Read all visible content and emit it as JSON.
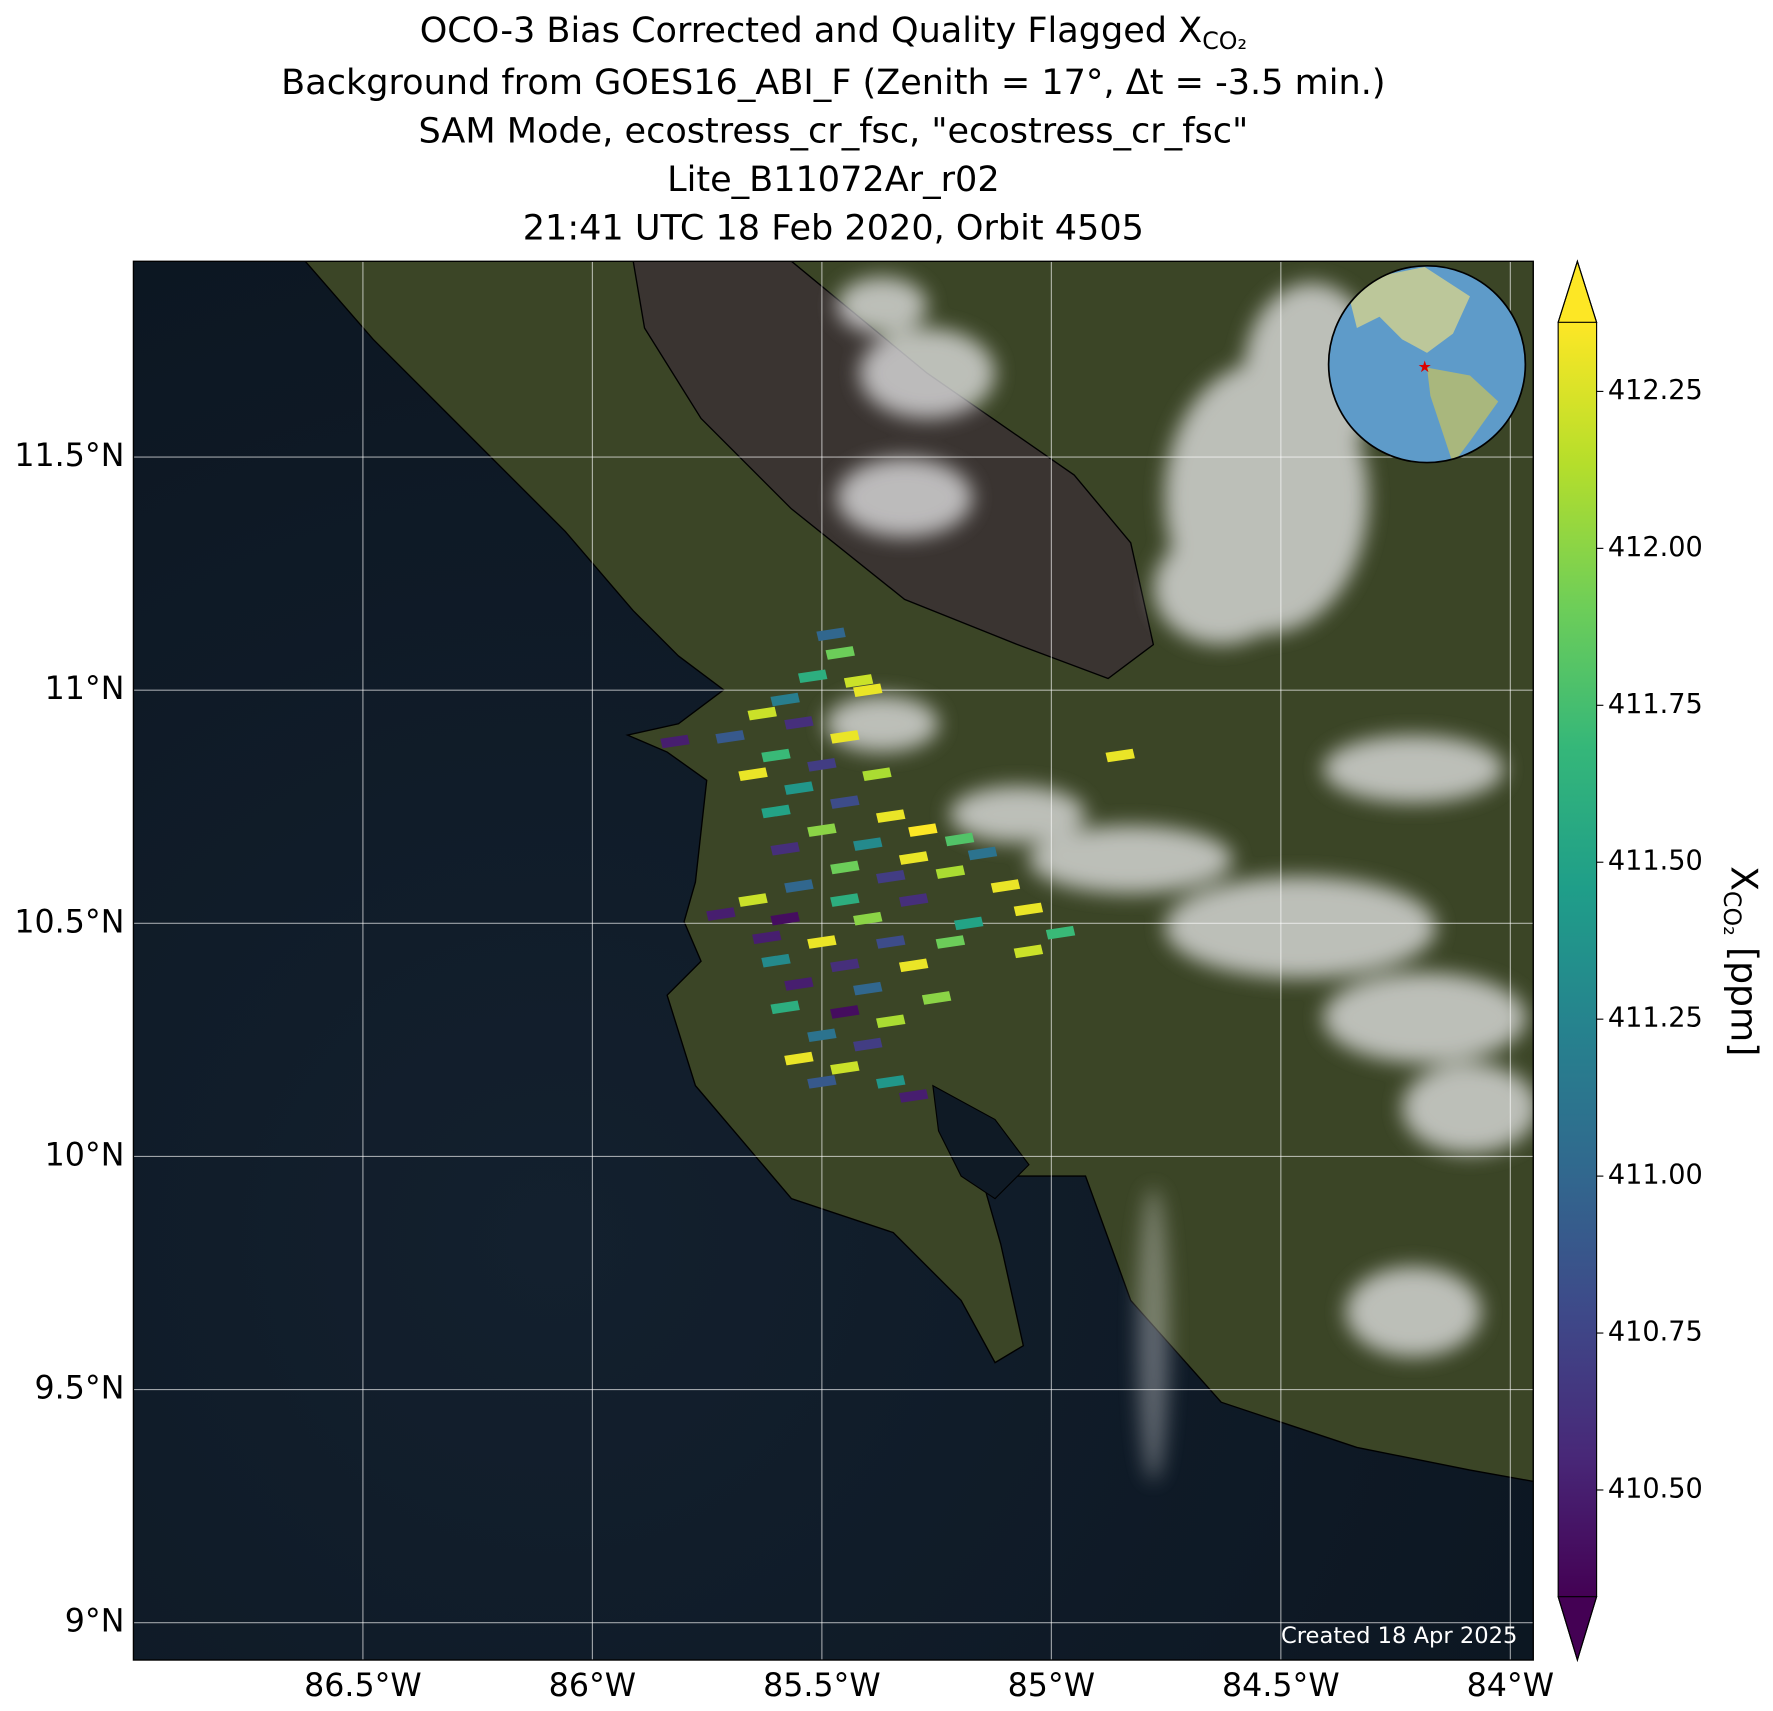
{
  "chart_data": {
    "type": "map",
    "title": {
      "text": "OCO-3 Bias Corrected and Quality Flagged X",
      "subscript": "CO₂"
    },
    "subtitle": [
      "Background from GOES16_ABI_F (Zenith = 17$^\\circ$, Δt = -3.5 min.)",
      "SAM Mode, ecostress_cr_fsc, \"ecostress_cr_fsc\"",
      "Lite_B11072Ar_r02",
      "21:41 UTC 18 Feb 2020, Orbit 4505"
    ],
    "credit": "Created 18 Apr 2025",
    "colorbar_label": {
      "text": "X",
      "subscript": "CO₂",
      "unit": "[ppm]"
    },
    "xlim": [
      -87.0,
      -83.95
    ],
    "ylim": [
      8.92,
      11.92
    ],
    "xticks": [
      {
        "value": -86.5,
        "label": "86.5°W"
      },
      {
        "value": -86,
        "label": "86°W"
      },
      {
        "value": -85.5,
        "label": "85.5°W"
      },
      {
        "value": -85,
        "label": "85°W"
      },
      {
        "value": -84.5,
        "label": "84.5°W"
      },
      {
        "value": -84,
        "label": "84°W"
      }
    ],
    "yticks": [
      {
        "value": 9,
        "label": "9°N"
      },
      {
        "value": 9.5,
        "label": "9.5°N"
      },
      {
        "value": 10,
        "label": "10°N"
      },
      {
        "value": 10.5,
        "label": "10.5°N"
      },
      {
        "value": 11,
        "label": "11°N"
      },
      {
        "value": 11.5,
        "label": "11.5°N"
      }
    ],
    "grid": true,
    "clim": [
      410.33,
      412.36
    ],
    "cticks": [
      {
        "value": 410.5,
        "label": "410.50"
      },
      {
        "value": 410.75,
        "label": "410.75"
      },
      {
        "value": 411,
        "label": "411.00"
      },
      {
        "value": 411.25,
        "label": "411.25"
      },
      {
        "value": 411.5,
        "label": "411.50"
      },
      {
        "value": 411.75,
        "label": "411.75"
      },
      {
        "value": 412,
        "label": "412.00"
      },
      {
        "value": 412.25,
        "label": "412.25"
      }
    ],
    "colormap": "viridis",
    "soundings": {
      "lon": [
        -85.46,
        -85.52,
        -85.4,
        -85.58,
        -85.63,
        -85.55,
        -85.7,
        -85.82,
        -85.45,
        -85.6,
        -85.5,
        -85.38,
        -85.65,
        -85.55,
        -85.45,
        -85.35,
        -85.6,
        -85.28,
        -85.5,
        -85.4,
        -85.2,
        -85.58,
        -85.3,
        -85.15,
        -85.45,
        -85.35,
        -85.22,
        -85.55,
        -85.1,
        -85.65,
        -85.45,
        -85.3,
        -85.05,
        -85.72,
        -85.58,
        -85.4,
        -85.18,
        -84.98,
        -85.62,
        -85.5,
        -85.35,
        -85.22,
        -85.05,
        -85.6,
        -85.45,
        -85.3,
        -85.55,
        -85.4,
        -85.25,
        -85.58,
        -85.45,
        -85.35,
        -85.5,
        -85.4,
        -85.55,
        -85.45,
        -85.35,
        -85.3,
        -85.5,
        -84.85,
        -85.42,
        -85.48
      ],
      "lat": [
        11.08,
        11.03,
        11.0,
        10.98,
        10.95,
        10.93,
        10.9,
        10.89,
        10.9,
        10.86,
        10.84,
        10.82,
        10.82,
        10.79,
        10.76,
        10.73,
        10.74,
        10.7,
        10.7,
        10.67,
        10.68,
        10.66,
        10.64,
        10.65,
        10.62,
        10.6,
        10.61,
        10.58,
        10.58,
        10.55,
        10.55,
        10.55,
        10.53,
        10.52,
        10.51,
        10.51,
        10.5,
        10.48,
        10.47,
        10.46,
        10.46,
        10.46,
        10.44,
        10.42,
        10.41,
        10.41,
        10.37,
        10.36,
        10.34,
        10.32,
        10.31,
        10.29,
        10.26,
        10.24,
        10.21,
        10.19,
        10.16,
        10.13,
        10.16,
        10.86,
        11.02,
        11.12
      ],
      "values": [
        411.9,
        411.6,
        412.3,
        411.2,
        412.2,
        410.6,
        410.9,
        410.5,
        412.3,
        411.7,
        410.7,
        412.1,
        412.3,
        411.4,
        410.8,
        412.3,
        411.5,
        412.4,
        412.0,
        411.3,
        411.8,
        410.6,
        412.3,
        411.1,
        411.9,
        410.7,
        412.1,
        411.0,
        412.3,
        412.2,
        411.6,
        410.6,
        412.3,
        410.5,
        410.4,
        412.0,
        411.5,
        411.7,
        410.5,
        412.3,
        410.8,
        411.9,
        412.2,
        411.3,
        410.6,
        412.3,
        410.5,
        411.0,
        412.0,
        411.6,
        410.4,
        412.1,
        411.1,
        410.7,
        412.3,
        412.2,
        411.4,
        410.5,
        410.9,
        412.3,
        412.2,
        411.0
      ]
    }
  }
}
